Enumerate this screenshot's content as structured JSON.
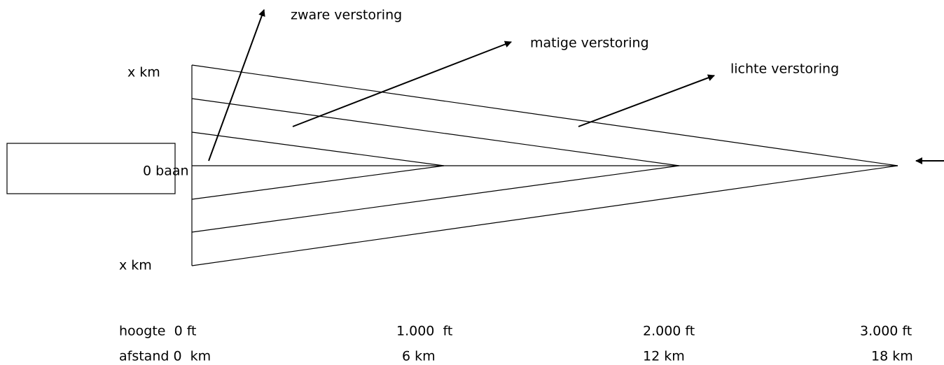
{
  "labels": {
    "heavy": "zware verstoring",
    "moderate": "matige verstoring",
    "light": "lichte verstoring",
    "top_width": "x km",
    "bottom_width": "x km",
    "runway": "0 baan"
  },
  "height_row": [
    "hoogte  0 ft",
    "1.000  ft",
    "2.000 ft",
    "3.000 ft"
  ],
  "distance_row": [
    "afstand 0  km",
    "6 km",
    "12 km",
    "18 km"
  ]
}
